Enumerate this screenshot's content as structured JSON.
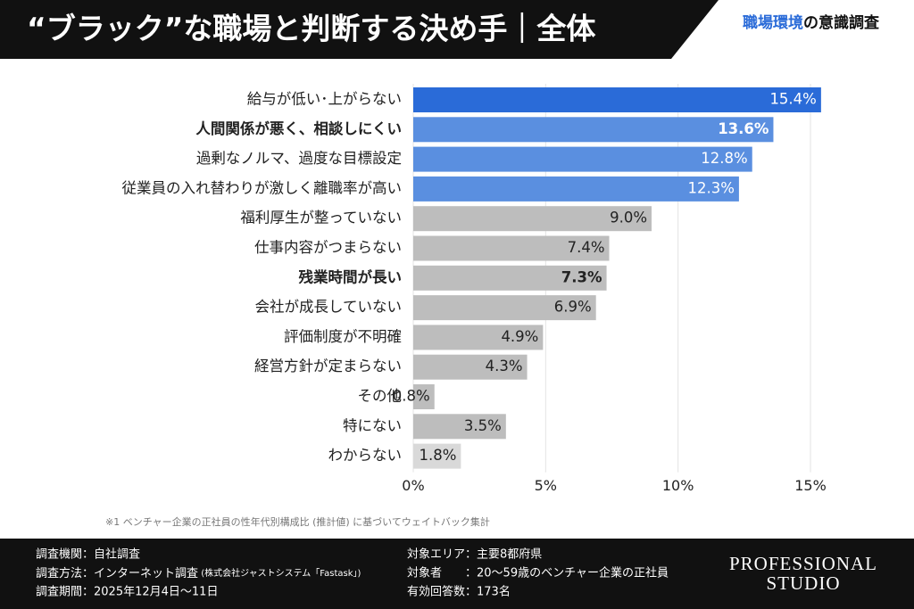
{
  "header": {
    "title": "“ブラック”な職場と判断する決め手｜全体",
    "series_name_accent": "職場環境",
    "series_name_rest": "の意識調査"
  },
  "chart_data": {
    "type": "barh",
    "categories": [
      "給与が低い･上がらない",
      "人間関係が悪く、相談しにくい",
      "過剰なノルマ、過度な目標設定",
      "従業員の入れ替わりが激しく離職率が高い",
      "福利厚生が整っていない",
      "仕事内容がつまらない",
      "残業時間が長い",
      "会社が成長していない",
      "評価制度が不明確",
      "経営方針が定まらない",
      "その他",
      "特にない",
      "わからない"
    ],
    "values": [
      15.4,
      13.6,
      12.8,
      12.3,
      9.0,
      7.4,
      7.3,
      6.9,
      4.9,
      4.3,
      0.8,
      3.5,
      1.8
    ],
    "value_labels": [
      "15.4%",
      "13.6%",
      "12.8%",
      "12.3%",
      "9.0%",
      "7.4%",
      "7.3%",
      "6.9%",
      "4.9%",
      "4.3%",
      "0.8%",
      "3.5%",
      "1.8%"
    ],
    "colors": [
      "#2a6bd8",
      "#5a8fe0",
      "#5a8fe0",
      "#5a8fe0",
      "#bdbdbd",
      "#bdbdbd",
      "#bdbdbd",
      "#bdbdbd",
      "#bdbdbd",
      "#bdbdbd",
      "#bdbdbd",
      "#bdbdbd",
      "#d9d9d9"
    ],
    "bold_indices": [
      1,
      6
    ],
    "xlim": [
      0,
      15
    ],
    "xticks": [
      {
        "value": 0,
        "label": "0%"
      },
      {
        "value": 5,
        "label": "5%"
      },
      {
        "value": 10,
        "label": "10%"
      },
      {
        "value": 15,
        "label": "15%"
      }
    ],
    "grid": true,
    "footnote": "※1 ベンチャー企業の正社員の性年代別構成比 (推計値) に基づいてウェイトバック集計"
  },
  "footer": {
    "org": "調査機関：自社調査",
    "method": "調査方法：インターネット調査",
    "method_note": " (株式会社ジャストシステム「Fastask」)",
    "period": "調査期間：2025年12月4日〜11日",
    "area": "対象エリア：主要8都府県",
    "target": "対象者　　：20〜59歳のベンチャー企業の正社員",
    "responses": "有効回答数：173名",
    "logo_1": "PROFESSIONAL",
    "logo_2": "STUDIO"
  }
}
